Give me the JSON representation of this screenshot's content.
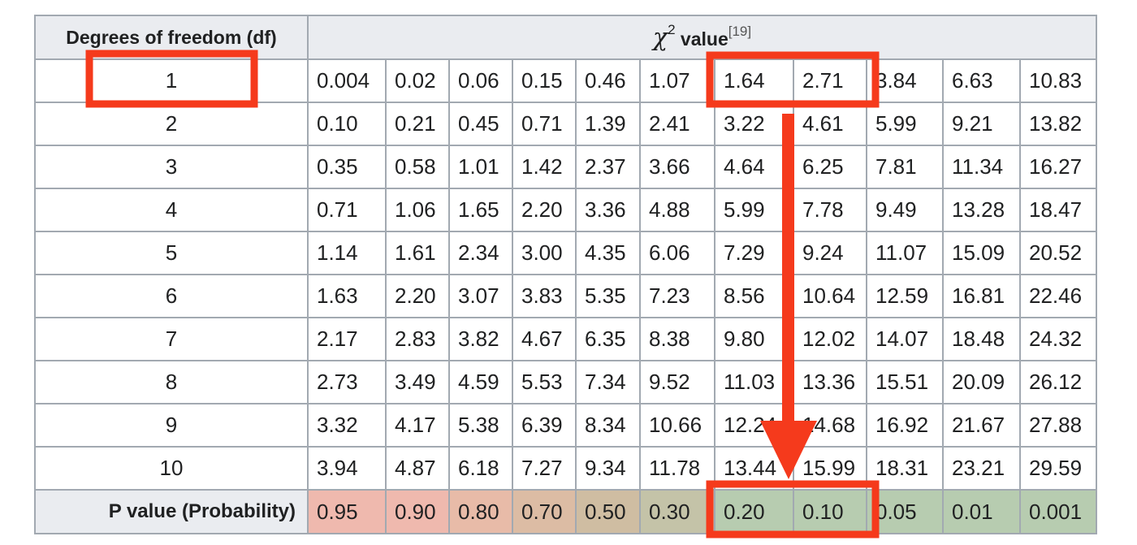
{
  "table": {
    "df_header": "Degrees of freedom (df)",
    "chi_symbol": "χ",
    "chi_exponent": "2",
    "chi_label": "value",
    "reference": "[19]",
    "p_label": "P value (Probability)",
    "rows": [
      {
        "df": "1",
        "values": [
          "0.004",
          "0.02",
          "0.06",
          "0.15",
          "0.46",
          "1.07",
          "1.64",
          "2.71",
          "3.84",
          "6.63",
          "10.83"
        ]
      },
      {
        "df": "2",
        "values": [
          "0.10",
          "0.21",
          "0.45",
          "0.71",
          "1.39",
          "2.41",
          "3.22",
          "4.61",
          "5.99",
          "9.21",
          "13.82"
        ]
      },
      {
        "df": "3",
        "values": [
          "0.35",
          "0.58",
          "1.01",
          "1.42",
          "2.37",
          "3.66",
          "4.64",
          "6.25",
          "7.81",
          "11.34",
          "16.27"
        ]
      },
      {
        "df": "4",
        "values": [
          "0.71",
          "1.06",
          "1.65",
          "2.20",
          "3.36",
          "4.88",
          "5.99",
          "7.78",
          "9.49",
          "13.28",
          "18.47"
        ]
      },
      {
        "df": "5",
        "values": [
          "1.14",
          "1.61",
          "2.34",
          "3.00",
          "4.35",
          "6.06",
          "7.29",
          "9.24",
          "11.07",
          "15.09",
          "20.52"
        ]
      },
      {
        "df": "6",
        "values": [
          "1.63",
          "2.20",
          "3.07",
          "3.83",
          "5.35",
          "7.23",
          "8.56",
          "10.64",
          "12.59",
          "16.81",
          "22.46"
        ]
      },
      {
        "df": "7",
        "values": [
          "2.17",
          "2.83",
          "3.82",
          "4.67",
          "6.35",
          "8.38",
          "9.80",
          "12.02",
          "14.07",
          "18.48",
          "24.32"
        ]
      },
      {
        "df": "8",
        "values": [
          "2.73",
          "3.49",
          "4.59",
          "5.53",
          "7.34",
          "9.52",
          "11.03",
          "13.36",
          "15.51",
          "20.09",
          "26.12"
        ]
      },
      {
        "df": "9",
        "values": [
          "3.32",
          "4.17",
          "5.38",
          "6.39",
          "8.34",
          "10.66",
          "12.24",
          "14.68",
          "16.92",
          "21.67",
          "27.88"
        ]
      },
      {
        "df": "10",
        "values": [
          "3.94",
          "4.87",
          "6.18",
          "7.27",
          "9.34",
          "11.78",
          "13.44",
          "15.99",
          "18.31",
          "23.21",
          "29.59"
        ]
      }
    ],
    "p_values": [
      "0.95",
      "0.90",
      "0.80",
      "0.70",
      "0.50",
      "0.30",
      "0.20",
      "0.10",
      "0.05",
      "0.01",
      "0.001"
    ],
    "p_colors": [
      "#efb9ae",
      "#efb9ae",
      "#e8bba8",
      "#dcbca4",
      "#cfbda2",
      "#c4c3a8",
      "#b7ccb0",
      "#b7ccb0",
      "#b7ccb0",
      "#b7ccb0",
      "#b7ccb0"
    ]
  },
  "annotation": {
    "color": "#f53a1c",
    "highlight_df": "1",
    "highlight_values": [
      "1.64",
      "2.71"
    ],
    "highlight_p": [
      "0.20",
      "0.10"
    ]
  }
}
